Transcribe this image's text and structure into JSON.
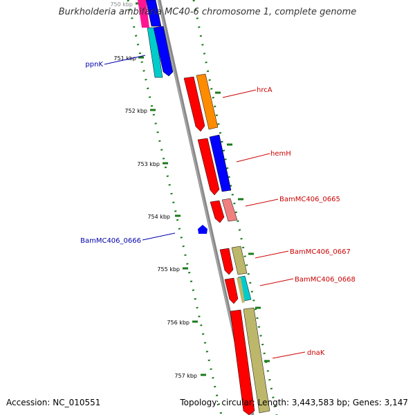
{
  "title": "Burkholderia ambifaria MC40-6 chromosome 1, complete genome",
  "accession": "Accession: NC_010551",
  "summary": "Topology: circular; Length: 3,443,583 bp; Genes: 3,147",
  "colors": {
    "backbone": "#888888",
    "tick": "#1a7a1a",
    "forward_label": "#cc0000",
    "reverse_label": "#0000aa",
    "red": "#ff0000",
    "blue": "#0000ff",
    "orange": "#ff8c00",
    "salmon": "#f08080",
    "tan": "#bdb76b",
    "cyan": "#00cccc",
    "pink": "#ff1493"
  },
  "scale_labels": [
    "750 kbp",
    "751 kbp",
    "752 kbp",
    "753 kbp",
    "754 kbp",
    "755 kbp",
    "756 kbp",
    "757 kbp"
  ],
  "gene_labels": [
    {
      "text": "ppnK",
      "strand": "reverse"
    },
    {
      "text": "hrcA",
      "strand": "forward"
    },
    {
      "text": "hemH",
      "strand": "forward"
    },
    {
      "text": "BamMC406_0665",
      "strand": "forward"
    },
    {
      "text": "BamMC406_0666",
      "strand": "reverse"
    },
    {
      "text": "BamMC406_0667",
      "strand": "forward"
    },
    {
      "text": "BamMC406_0668",
      "strand": "forward"
    },
    {
      "text": "dnaK",
      "strand": "forward"
    }
  ]
}
